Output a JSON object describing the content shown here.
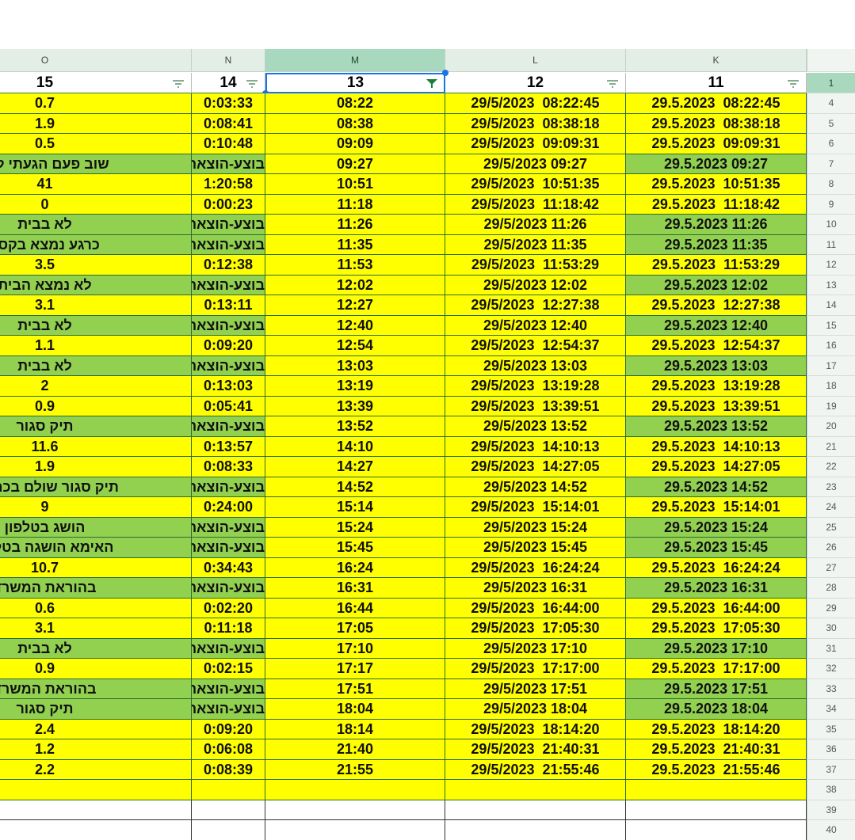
{
  "columns": [
    "O",
    "N",
    "M",
    "L",
    "K"
  ],
  "header_row": {
    "num": 1,
    "cells": [
      "15",
      "14",
      "13",
      "12",
      "11"
    ]
  },
  "fills": {
    "yellow": "#ffff00",
    "green": "#92d050",
    "blank": "#ffffff"
  },
  "green_columns": [
    "O",
    "N",
    "K"
  ],
  "rows": [
    {
      "num": 4,
      "fill": "yellow",
      "cells": [
        "0.7",
        "0:03:33",
        "08:22",
        "29/5/2023  08:22:45",
        "29.5.2023  08:22:45"
      ]
    },
    {
      "num": 5,
      "fill": "yellow",
      "cells": [
        "1.9",
        "0:08:41",
        "08:38",
        "29/5/2023  08:38:18",
        "29.5.2023  08:38:18"
      ]
    },
    {
      "num": 6,
      "fill": "yellow",
      "cells": [
        "0.5",
        "0:10:48",
        "09:09",
        "29/5/2023  09:09:31",
        "29.5.2023  09:09:31"
      ]
    },
    {
      "num": 7,
      "fill": "green",
      "cells": [
        "שוב פעם הגעתי לכר",
        "בוצע-הוצאה",
        "09:27",
        "29/5/2023 09:27",
        "29.5.2023 09:27"
      ]
    },
    {
      "num": 8,
      "fill": "yellow",
      "cells": [
        "41",
        "1:20:58",
        "10:51",
        "29/5/2023  10:51:35",
        "29.5.2023  10:51:35"
      ]
    },
    {
      "num": 9,
      "fill": "yellow",
      "cells": [
        "0",
        "0:00:23",
        "11:18",
        "29/5/2023  11:18:42",
        "29.5.2023  11:18:42"
      ]
    },
    {
      "num": 10,
      "fill": "green",
      "cells": [
        "לא בבית",
        "בוצע-הוצאה",
        "11:26",
        "29/5/2023 11:26",
        "29.5.2023 11:26"
      ]
    },
    {
      "num": 11,
      "fill": "green",
      "cells": [
        "כרגע נמצא בקסר",
        "בוצע-הוצאה",
        "11:35",
        "29/5/2023 11:35",
        "29.5.2023 11:35"
      ]
    },
    {
      "num": 12,
      "fill": "yellow",
      "cells": [
        "3.5",
        "0:12:38",
        "11:53",
        "29/5/2023  11:53:29",
        "29.5.2023  11:53:29"
      ]
    },
    {
      "num": 13,
      "fill": "green",
      "cells": [
        "לא נמצא הבית",
        "בוצע-הוצאה",
        "12:02",
        "29/5/2023 12:02",
        "29.5.2023 12:02"
      ]
    },
    {
      "num": 14,
      "fill": "yellow",
      "cells": [
        "3.1",
        "0:13:11",
        "12:27",
        "29/5/2023  12:27:38",
        "29.5.2023  12:27:38"
      ]
    },
    {
      "num": 15,
      "fill": "green",
      "cells": [
        "לא בבית",
        "בוצע-הוצאה",
        "12:40",
        "29/5/2023 12:40",
        "29.5.2023 12:40"
      ]
    },
    {
      "num": 16,
      "fill": "yellow",
      "cells": [
        "1.1",
        "0:09:20",
        "12:54",
        "29/5/2023  12:54:37",
        "29.5.2023  12:54:37"
      ]
    },
    {
      "num": 17,
      "fill": "green",
      "cells": [
        "לא בבית",
        "בוצע-הוצאה",
        "13:03",
        "29/5/2023 13:03",
        "29.5.2023 13:03"
      ]
    },
    {
      "num": 18,
      "fill": "yellow",
      "cells": [
        "2",
        "0:13:03",
        "13:19",
        "29/5/2023  13:19:28",
        "29.5.2023  13:19:28"
      ]
    },
    {
      "num": 19,
      "fill": "yellow",
      "cells": [
        "0.9",
        "0:05:41",
        "13:39",
        "29/5/2023  13:39:51",
        "29.5.2023  13:39:51"
      ]
    },
    {
      "num": 20,
      "fill": "green",
      "cells": [
        "תיק סגור",
        "בוצע-הוצאה",
        "13:52",
        "29/5/2023 13:52",
        "29.5.2023 13:52"
      ]
    },
    {
      "num": 21,
      "fill": "yellow",
      "cells": [
        "11.6",
        "0:13:57",
        "14:10",
        "29/5/2023  14:10:13",
        "29.5.2023  14:10:13"
      ]
    },
    {
      "num": 22,
      "fill": "yellow",
      "cells": [
        "1.9",
        "0:08:33",
        "14:27",
        "29/5/2023  14:27:05",
        "29.5.2023  14:27:05"
      ]
    },
    {
      "num": 23,
      "fill": "green",
      "cells": [
        "תיק סגור שולם בכרטיס",
        "בוצע-הוצאה",
        "14:52",
        "29/5/2023 14:52",
        "29.5.2023 14:52"
      ]
    },
    {
      "num": 24,
      "fill": "yellow",
      "cells": [
        "9",
        "0:24:00",
        "15:14",
        "29/5/2023  15:14:01",
        "29.5.2023  15:14:01"
      ]
    },
    {
      "num": 25,
      "fill": "green",
      "cells": [
        "הושג בטלפון",
        "בוצע-הוצאה",
        "15:24",
        "29/5/2023 15:24",
        "29.5.2023 15:24"
      ]
    },
    {
      "num": 26,
      "fill": "green",
      "cells": [
        "האימא הושגה בטלפון",
        "בוצע-הוצאה",
        "15:45",
        "29/5/2023 15:45",
        "29.5.2023 15:45"
      ]
    },
    {
      "num": 27,
      "fill": "yellow",
      "cells": [
        "10.7",
        "0:34:43",
        "16:24",
        "29/5/2023  16:24:24",
        "29.5.2023  16:24:24"
      ]
    },
    {
      "num": 28,
      "fill": "green",
      "cells": [
        "בהוראת המשרד",
        "בוצע-הוצאה",
        "16:31",
        "29/5/2023 16:31",
        "29.5.2023 16:31"
      ]
    },
    {
      "num": 29,
      "fill": "yellow",
      "cells": [
        "0.6",
        "0:02:20",
        "16:44",
        "29/5/2023  16:44:00",
        "29.5.2023  16:44:00"
      ]
    },
    {
      "num": 30,
      "fill": "yellow",
      "cells": [
        "3.1",
        "0:11:18",
        "17:05",
        "29/5/2023  17:05:30",
        "29.5.2023  17:05:30"
      ]
    },
    {
      "num": 31,
      "fill": "green",
      "cells": [
        "לא בבית",
        "בוצע-הוצאה",
        "17:10",
        "29/5/2023 17:10",
        "29.5.2023 17:10"
      ]
    },
    {
      "num": 32,
      "fill": "yellow",
      "cells": [
        "0.9",
        "0:02:15",
        "17:17",
        "29/5/2023  17:17:00",
        "29.5.2023  17:17:00"
      ]
    },
    {
      "num": 33,
      "fill": "green",
      "cells": [
        "בהוראת המשרד",
        "בוצע-הוצאה",
        "17:51",
        "29/5/2023 17:51",
        "29.5.2023 17:51"
      ]
    },
    {
      "num": 34,
      "fill": "green",
      "cells": [
        "תיק סגור",
        "בוצע-הוצאה",
        "18:04",
        "29/5/2023 18:04",
        "29.5.2023 18:04"
      ]
    },
    {
      "num": 35,
      "fill": "yellow",
      "cells": [
        "2.4",
        "0:09:20",
        "18:14",
        "29/5/2023  18:14:20",
        "29.5.2023  18:14:20"
      ]
    },
    {
      "num": 36,
      "fill": "yellow",
      "cells": [
        "1.2",
        "0:06:08",
        "21:40",
        "29/5/2023  21:40:31",
        "29.5.2023  21:40:31"
      ]
    },
    {
      "num": 37,
      "fill": "yellow",
      "cells": [
        "2.2",
        "0:08:39",
        "21:55",
        "29/5/2023  21:55:46",
        "29.5.2023  21:55:46"
      ]
    },
    {
      "num": 38,
      "fill": "yellow"
    },
    {
      "num": 39,
      "fill": "blank"
    },
    {
      "num": 40,
      "fill": "blank"
    }
  ]
}
